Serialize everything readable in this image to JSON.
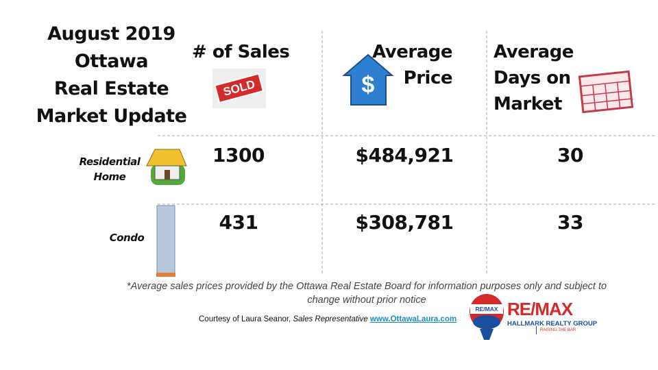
{
  "title": [
    "August 2019",
    "Ottawa",
    "Real Estate",
    "Market Update"
  ],
  "table": {
    "headers": [
      "# of Sales",
      "Average Price",
      "Average Days on Market"
    ],
    "rows": [
      [
        "Residential Home",
        "1300",
        "$484,921",
        "30"
      ],
      [
        "Condo",
        "431",
        "$308,781",
        "33"
      ]
    ]
  },
  "sold_sign": "SOLD",
  "footnote": "*Average sales prices provided by the Ottawa Real Estate Board for information purposes only and subject to change without prior notice",
  "courtesy": {
    "text": "Courtesy of Laura Seanor,",
    "role": "Sales Representative",
    "link": "www.OttawaLaura.com"
  },
  "logo": {
    "balloon": "RE/MAX",
    "brand": "RE/MAX",
    "group": "HALLMARK REALTY GROUP",
    "slogan": "RAISING THE BAR"
  }
}
